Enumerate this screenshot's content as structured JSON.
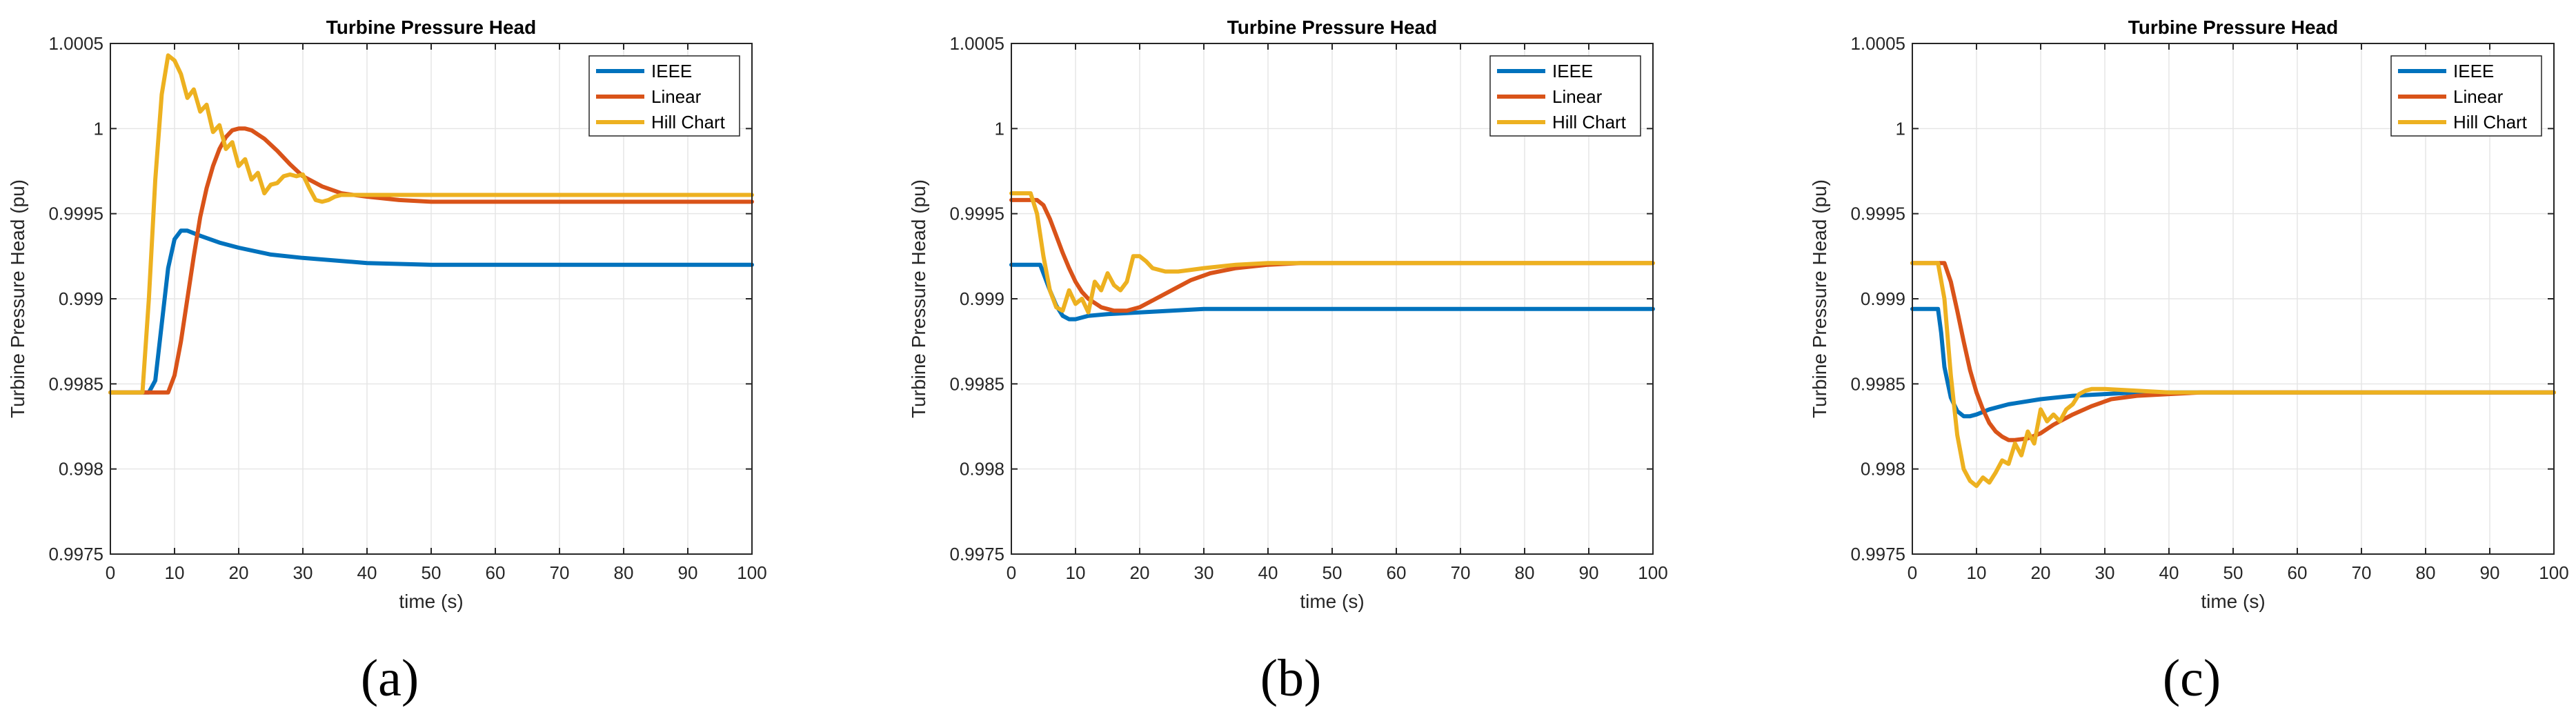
{
  "colors": {
    "IEEE": "#0072BD",
    "Linear": "#D95319",
    "Hill Chart": "#EDB120",
    "grid": "#e6e6e6",
    "axis": "#262626"
  },
  "chart_data": [
    {
      "type": "line",
      "caption": "(a)",
      "title": "Turbine Pressure Head",
      "xlabel": "time (s)",
      "ylabel": "Turbine Pressure Head (pu)",
      "xlim": [
        0,
        100
      ],
      "ylim": [
        0.9975,
        1.0005
      ],
      "xticks": [
        0,
        10,
        20,
        30,
        40,
        50,
        60,
        70,
        80,
        90,
        100
      ],
      "yticks": [
        0.9975,
        0.998,
        0.9985,
        0.999,
        0.9995,
        1,
        1.0005
      ],
      "ytick_labels": [
        "0.9975",
        "0.998",
        "0.9985",
        "0.999",
        "0.9995",
        "1",
        "1.0005"
      ],
      "grid": true,
      "legend": "top-right",
      "series": [
        {
          "name": "IEEE",
          "x": [
            0,
            6,
            7,
            8,
            9,
            10,
            11,
            12,
            14,
            17,
            20,
            25,
            30,
            40,
            50,
            60,
            70,
            80,
            90,
            100
          ],
          "values": [
            0.99845,
            0.99845,
            0.99852,
            0.99885,
            0.99918,
            0.99935,
            0.9994,
            0.9994,
            0.99937,
            0.99933,
            0.9993,
            0.99926,
            0.99924,
            0.99921,
            0.9992,
            0.9992,
            0.9992,
            0.9992,
            0.9992,
            0.9992
          ]
        },
        {
          "name": "Linear",
          "x": [
            0,
            9,
            10,
            11,
            12,
            13,
            14,
            15,
            16,
            17,
            18,
            19,
            20,
            21,
            22,
            24,
            26,
            28,
            30,
            33,
            36,
            40,
            45,
            50,
            60,
            70,
            80,
            90,
            100
          ],
          "values": [
            0.99845,
            0.99845,
            0.99855,
            0.99875,
            0.999,
            0.99925,
            0.99948,
            0.99965,
            0.99978,
            0.99988,
            0.99995,
            0.99999,
            1.0,
            1.0,
            0.99999,
            0.99994,
            0.99987,
            0.99979,
            0.99972,
            0.99966,
            0.99962,
            0.9996,
            0.99958,
            0.99957,
            0.99957,
            0.99957,
            0.99957,
            0.99957,
            0.99957
          ]
        },
        {
          "name": "Hill Chart",
          "x": [
            0,
            5,
            6,
            7,
            8,
            9,
            10,
            11,
            12,
            13,
            14,
            15,
            16,
            17,
            18,
            19,
            20,
            21,
            22,
            23,
            24,
            25,
            26,
            27,
            28,
            29,
            30,
            31,
            32,
            33,
            34,
            35,
            36,
            38,
            40,
            50,
            60,
            70,
            80,
            90,
            100
          ],
          "values": [
            0.99845,
            0.99845,
            0.999,
            0.9997,
            1.0002,
            1.00043,
            1.0004,
            1.00032,
            1.00018,
            1.00023,
            1.0001,
            1.00014,
            0.99998,
            1.00002,
            0.99988,
            0.99992,
            0.99978,
            0.99982,
            0.9997,
            0.99974,
            0.99962,
            0.99967,
            0.99968,
            0.99972,
            0.99973,
            0.99972,
            0.99973,
            0.99965,
            0.99958,
            0.99957,
            0.99958,
            0.9996,
            0.99961,
            0.99961,
            0.99961,
            0.99961,
            0.99961,
            0.99961,
            0.99961,
            0.99961,
            0.99961
          ]
        }
      ]
    },
    {
      "type": "line",
      "caption": "(b)",
      "title": "Turbine Pressure Head",
      "xlabel": "time (s)",
      "ylabel": "Turbine Pressure Head (pu)",
      "xlim": [
        0,
        100
      ],
      "ylim": [
        0.9975,
        1.0005
      ],
      "xticks": [
        0,
        10,
        20,
        30,
        40,
        50,
        60,
        70,
        80,
        90,
        100
      ],
      "yticks": [
        0.9975,
        0.998,
        0.9985,
        0.999,
        0.9995,
        1,
        1.0005
      ],
      "ytick_labels": [
        "0.9975",
        "0.998",
        "0.9985",
        "0.999",
        "0.9995",
        "1",
        "1.0005"
      ],
      "grid": true,
      "legend": "top-right",
      "series": [
        {
          "name": "IEEE",
          "x": [
            0,
            4.5,
            5,
            6,
            7,
            8,
            9,
            10,
            12,
            15,
            20,
            25,
            30,
            40,
            50,
            60,
            70,
            80,
            90,
            100
          ],
          "values": [
            0.9992,
            0.9992,
            0.99915,
            0.99905,
            0.99896,
            0.9989,
            0.99888,
            0.99888,
            0.9989,
            0.99891,
            0.99892,
            0.99893,
            0.99894,
            0.99894,
            0.99894,
            0.99894,
            0.99894,
            0.99894,
            0.99894,
            0.99894
          ]
        },
        {
          "name": "Linear",
          "x": [
            0,
            4,
            5,
            6,
            7,
            8,
            9,
            10,
            11,
            12,
            14,
            16,
            18,
            20,
            22,
            25,
            28,
            31,
            35,
            40,
            45,
            50,
            60,
            70,
            80,
            90,
            100
          ],
          "values": [
            0.99958,
            0.99958,
            0.99955,
            0.99947,
            0.99937,
            0.99927,
            0.99918,
            0.9991,
            0.99904,
            0.999,
            0.99895,
            0.99893,
            0.99893,
            0.99895,
            0.99899,
            0.99905,
            0.99911,
            0.99915,
            0.99918,
            0.9992,
            0.99921,
            0.99921,
            0.99921,
            0.99921,
            0.99921,
            0.99921,
            0.99921
          ]
        },
        {
          "name": "Hill Chart",
          "x": [
            0,
            3,
            4,
            5,
            6,
            7,
            8,
            9,
            10,
            11,
            12,
            13,
            14,
            15,
            16,
            17,
            18,
            19,
            20,
            21,
            22,
            24,
            26,
            28,
            30,
            35,
            40,
            50,
            60,
            70,
            80,
            90,
            100
          ],
          "values": [
            0.99962,
            0.99962,
            0.9995,
            0.99925,
            0.99905,
            0.99895,
            0.99893,
            0.99905,
            0.99897,
            0.999,
            0.99892,
            0.9991,
            0.99905,
            0.99915,
            0.99908,
            0.99905,
            0.9991,
            0.99925,
            0.99925,
            0.99922,
            0.99918,
            0.99916,
            0.99916,
            0.99917,
            0.99918,
            0.9992,
            0.99921,
            0.99921,
            0.99921,
            0.99921,
            0.99921,
            0.99921,
            0.99921
          ]
        }
      ]
    },
    {
      "type": "line",
      "caption": "(c)",
      "title": "Turbine Pressure Head",
      "xlabel": "time (s)",
      "ylabel": "Turbine Pressure Head (pu)",
      "xlim": [
        0,
        100
      ],
      "ylim": [
        0.9975,
        1.0005
      ],
      "xticks": [
        0,
        10,
        20,
        30,
        40,
        50,
        60,
        70,
        80,
        90,
        100
      ],
      "yticks": [
        0.9975,
        0.998,
        0.9985,
        0.999,
        0.9995,
        1,
        1.0005
      ],
      "ytick_labels": [
        "0.9975",
        "0.998",
        "0.9985",
        "0.999",
        "0.9995",
        "1",
        "1.0005"
      ],
      "grid": true,
      "legend": "top-right",
      "series": [
        {
          "name": "IEEE",
          "x": [
            0,
            4,
            4.5,
            5,
            6,
            7,
            8,
            9,
            10,
            12,
            15,
            20,
            25,
            30,
            35,
            40,
            50,
            60,
            70,
            80,
            90,
            100
          ],
          "values": [
            0.99894,
            0.99894,
            0.9988,
            0.9986,
            0.99842,
            0.99834,
            0.99831,
            0.99831,
            0.99832,
            0.99835,
            0.99838,
            0.99841,
            0.99843,
            0.99844,
            0.99845,
            0.99845,
            0.99845,
            0.99845,
            0.99845,
            0.99845,
            0.99845,
            0.99845
          ]
        },
        {
          "name": "Linear",
          "x": [
            0,
            5,
            6,
            7,
            8,
            9,
            10,
            11,
            12,
            13,
            14,
            15,
            16,
            18,
            20,
            22,
            25,
            28,
            31,
            35,
            40,
            45,
            50,
            60,
            70,
            80,
            90,
            100
          ],
          "values": [
            0.99921,
            0.99921,
            0.9991,
            0.99893,
            0.99875,
            0.99858,
            0.99845,
            0.99835,
            0.99827,
            0.99822,
            0.99819,
            0.99817,
            0.99817,
            0.99818,
            0.99821,
            0.99826,
            0.99832,
            0.99837,
            0.99841,
            0.99843,
            0.99844,
            0.99845,
            0.99845,
            0.99845,
            0.99845,
            0.99845,
            0.99845,
            0.99845
          ]
        },
        {
          "name": "Hill Chart",
          "x": [
            0,
            4,
            5,
            6,
            7,
            8,
            9,
            10,
            11,
            12,
            13,
            14,
            15,
            16,
            17,
            18,
            19,
            20,
            21,
            22,
            23,
            24,
            25,
            26,
            27,
            28,
            30,
            35,
            40,
            50,
            60,
            70,
            80,
            90,
            100
          ],
          "values": [
            0.99921,
            0.99921,
            0.999,
            0.99855,
            0.9982,
            0.998,
            0.99793,
            0.9979,
            0.99795,
            0.99792,
            0.99798,
            0.99805,
            0.99803,
            0.99815,
            0.99808,
            0.99822,
            0.99815,
            0.99835,
            0.99828,
            0.99832,
            0.99828,
            0.99835,
            0.99838,
            0.99844,
            0.99846,
            0.99847,
            0.99847,
            0.99846,
            0.99845,
            0.99845,
            0.99845,
            0.99845,
            0.99845,
            0.99845,
            0.99845
          ]
        }
      ]
    }
  ]
}
